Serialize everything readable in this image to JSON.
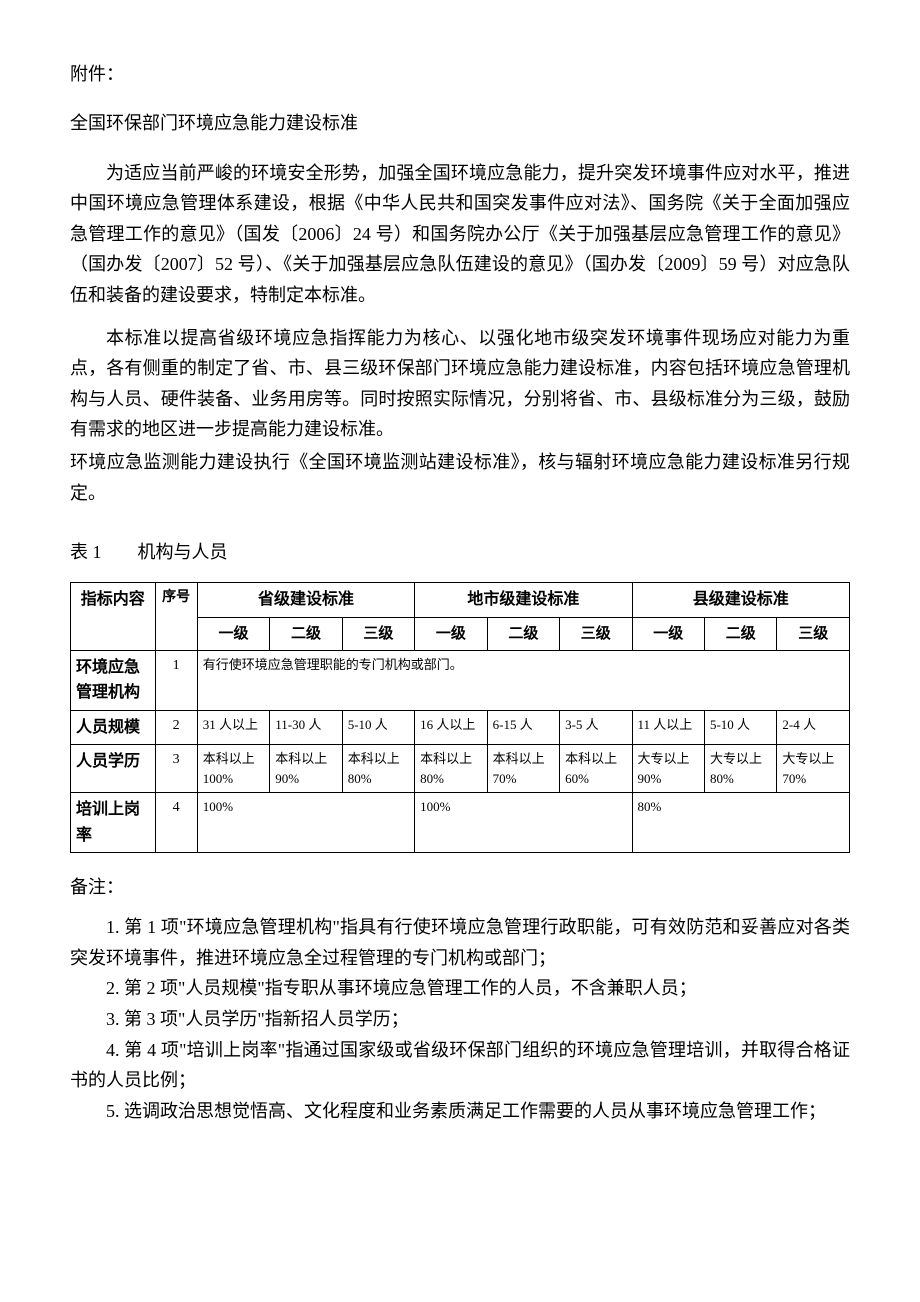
{
  "attachment_label": "附件：",
  "doc_title": "全国环保部门环境应急能力建设标准",
  "para1": "为适应当前严峻的环境安全形势，加强全国环境应急能力，提升突发环境事件应对水平，推进中国环境应急管理体系建设，根据《中华人民共和国突发事件应对法》、国务院《关于全面加强应急管理工作的意见》（国发〔2006〕24 号）和国务院办公厅《关于加强基层应急管理工作的意见》（国办发〔2007〕52 号）、《关于加强基层应急队伍建设的意见》（国办发〔2009〕59 号）对应急队伍和装备的建设要求，特制定本标准。",
  "para2": "本标准以提高省级环境应急指挥能力为核心、以强化地市级突发环境事件现场应对能力为重点，各有侧重的制定了省、市、县三级环保部门环境应急能力建设标准，内容包括环境应急管理机构与人员、硬件装备、业务用房等。同时按照实际情况，分别将省、市、县级标准分为三级，鼓励有需求的地区进一步提高能力建设标准。",
  "para3": "环境应急监测能力建设执行《全国环境监测站建设标准》，核与辐射环境应急能力建设标准另行规定。",
  "table_caption": "表 1　　机构与人员",
  "table": {
    "headers": {
      "indicator": "指标内容",
      "seq": "序号",
      "prov": "省级建设标准",
      "city": "地市级建设标准",
      "county": "县级建设标准",
      "l1": "一级",
      "l2": "二级",
      "l3": "三级"
    },
    "rows": [
      {
        "indicator": "环境应急管理机构",
        "seq": "1",
        "merged": "有行使环境应急管理职能的专门机构或部门。"
      },
      {
        "indicator": "人员规模",
        "seq": "2",
        "cells": [
          "31 人以上",
          "11-30 人",
          "5-10 人",
          "16 人以上",
          "6-15 人",
          "3-5 人",
          "11 人以上",
          "5-10 人",
          "2-4 人"
        ]
      },
      {
        "indicator": "人员学历",
        "seq": "3",
        "cells": [
          "本科以上 100%",
          "本科以上 90%",
          "本科以上 80%",
          "本科以上 80%",
          "本科以上 70%",
          "本科以上 60%",
          "大专以上 90%",
          "大专以上 80%",
          "大专以上 70%"
        ]
      },
      {
        "indicator": "培训上岗率",
        "seq": "4",
        "grouped": [
          "100%",
          "100%",
          "80%"
        ]
      }
    ]
  },
  "notes_label": "备注：",
  "notes": [
    "1. 第 1 项\"环境应急管理机构\"指具有行使环境应急管理行政职能，可有效防范和妥善应对各类突发环境事件，推进环境应急全过程管理的专门机构或部门；",
    "2. 第 2 项\"人员规模\"指专职从事环境应急管理工作的人员，不含兼职人员；",
    "3. 第 3 项\"人员学历\"指新招人员学历；",
    "4. 第 4 项\"培训上岗率\"指通过国家级或省级环保部门组织的环境应急管理培训，并取得合格证书的人员比例；",
    "5. 选调政治思想觉悟高、文化程度和业务素质满足工作需要的人员从事环境应急管理工作；"
  ]
}
